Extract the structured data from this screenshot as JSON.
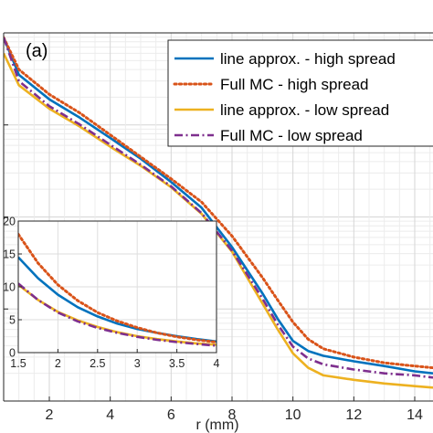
{
  "chart_data": [
    {
      "id": "main",
      "type": "line",
      "panel_label": "(a)",
      "xlabel": "r (mm)",
      "ylabel": "",
      "y_scale": "log",
      "xlim": [
        0.5,
        14.6
      ],
      "ylim": [
        0.0001,
        1
      ],
      "x_ticks": [
        2,
        4,
        6,
        8,
        10,
        12,
        14
      ],
      "x_tick_labels": [
        "2",
        "4",
        "6",
        "8",
        "10",
        "12",
        "14"
      ],
      "grid": true,
      "minor_grid": true,
      "legend_placement": "top-right",
      "series": [
        {
          "name": "line approx. - high spread",
          "color": "#0072BD",
          "style": "solid",
          "x": [
            0.5,
            1,
            2,
            3,
            4,
            5,
            6,
            7,
            8,
            9,
            9.5,
            10,
            10.5,
            11,
            12,
            13,
            14,
            14.6
          ],
          "y": [
            0.89,
            0.35,
            0.19,
            0.12,
            0.072,
            0.043,
            0.024,
            0.0126,
            0.0047,
            0.00148,
            0.00078,
            0.00045,
            0.00035,
            0.00031,
            0.00027,
            0.00024,
            0.00021,
            0.0002
          ]
        },
        {
          "name": "Full MC  - high spread",
          "color": "#D95319",
          "style": "dotted",
          "x": [
            0.5,
            1,
            2,
            3,
            4,
            5,
            6,
            7,
            8,
            9,
            9.5,
            10,
            10.5,
            11,
            12,
            13,
            14,
            14.6
          ],
          "y": [
            0.89,
            0.4,
            0.215,
            0.135,
            0.078,
            0.045,
            0.026,
            0.0145,
            0.0062,
            0.0022,
            0.00125,
            0.00072,
            0.00047,
            0.00037,
            0.0003,
            0.00026,
            0.00024,
            0.00023
          ]
        },
        {
          "name": "line approx. - low spread",
          "color": "#EDB120",
          "style": "solid",
          "x": [
            0.5,
            1,
            2,
            3,
            4,
            5,
            6,
            7,
            8,
            9,
            9.5,
            10,
            10.5,
            11,
            12,
            13,
            14,
            14.6
          ],
          "y": [
            0.6,
            0.27,
            0.15,
            0.096,
            0.058,
            0.036,
            0.021,
            0.0108,
            0.0042,
            0.00115,
            0.0006,
            0.00033,
            0.00023,
            0.00019,
            0.00017,
            0.000155,
            0.000145,
            0.00014
          ]
        },
        {
          "name": "Full MC  - low spread",
          "color": "#7E2F8E",
          "style": "dashdot",
          "x": [
            0.5,
            1,
            2,
            3,
            4,
            5,
            6,
            7,
            8,
            9,
            9.5,
            10,
            10.5,
            11,
            12,
            13,
            14,
            14.6
          ],
          "y": [
            0.89,
            0.3,
            0.16,
            0.101,
            0.061,
            0.037,
            0.0215,
            0.011,
            0.0043,
            0.0013,
            0.00068,
            0.00039,
            0.00029,
            0.00025,
            0.00022,
            0.0002,
            0.00019,
            0.00018
          ]
        }
      ]
    },
    {
      "id": "inset",
      "type": "line",
      "xlabel": "",
      "ylabel": "",
      "xlim": [
        1.5,
        4
      ],
      "ylim": [
        0,
        20
      ],
      "x_ticks": [
        1.5,
        2,
        2.5,
        3,
        3.5,
        4
      ],
      "x_tick_labels": [
        "1.5",
        "2",
        "2.5",
        "3",
        "3.5",
        "4"
      ],
      "y_ticks": [
        0,
        5,
        10,
        15,
        20
      ],
      "y_tick_labels": [
        "0",
        "5",
        "10",
        "15",
        "20"
      ],
      "grid": true,
      "series": [
        {
          "name": "line approx. - high spread",
          "color": "#0072BD",
          "style": "solid",
          "x": [
            1.5,
            1.75,
            2,
            2.25,
            2.5,
            2.75,
            3,
            3.25,
            3.5,
            3.75,
            4
          ],
          "y": [
            14.5,
            11.3,
            8.8,
            6.9,
            5.5,
            4.4,
            3.6,
            3.0,
            2.5,
            2.05,
            1.7
          ]
        },
        {
          "name": "Full MC  - high spread",
          "color": "#D95319",
          "style": "dotted",
          "x": [
            1.5,
            1.75,
            2,
            2.25,
            2.5,
            2.75,
            3,
            3.25,
            3.5,
            3.75,
            4
          ],
          "y": [
            18,
            13.6,
            10.3,
            7.9,
            6.1,
            4.8,
            3.8,
            3.0,
            2.4,
            1.95,
            1.6
          ]
        },
        {
          "name": "line approx. - low spread",
          "color": "#EDB120",
          "style": "solid",
          "x": [
            1.5,
            1.75,
            2,
            2.25,
            2.5,
            2.75,
            3,
            3.25,
            3.5,
            3.75,
            4
          ],
          "y": [
            10.3,
            8.0,
            6.2,
            4.9,
            3.9,
            3.1,
            2.5,
            2.05,
            1.7,
            1.4,
            1.2
          ]
        },
        {
          "name": "Full MC  - low spread",
          "color": "#7E2F8E",
          "style": "dashdot",
          "x": [
            1.5,
            1.75,
            2,
            2.25,
            2.5,
            2.75,
            3,
            3.25,
            3.5,
            3.75,
            4
          ],
          "y": [
            10.5,
            8.0,
            6.1,
            4.75,
            3.75,
            3.0,
            2.4,
            1.95,
            1.6,
            1.3,
            1.05
          ]
        }
      ]
    }
  ]
}
